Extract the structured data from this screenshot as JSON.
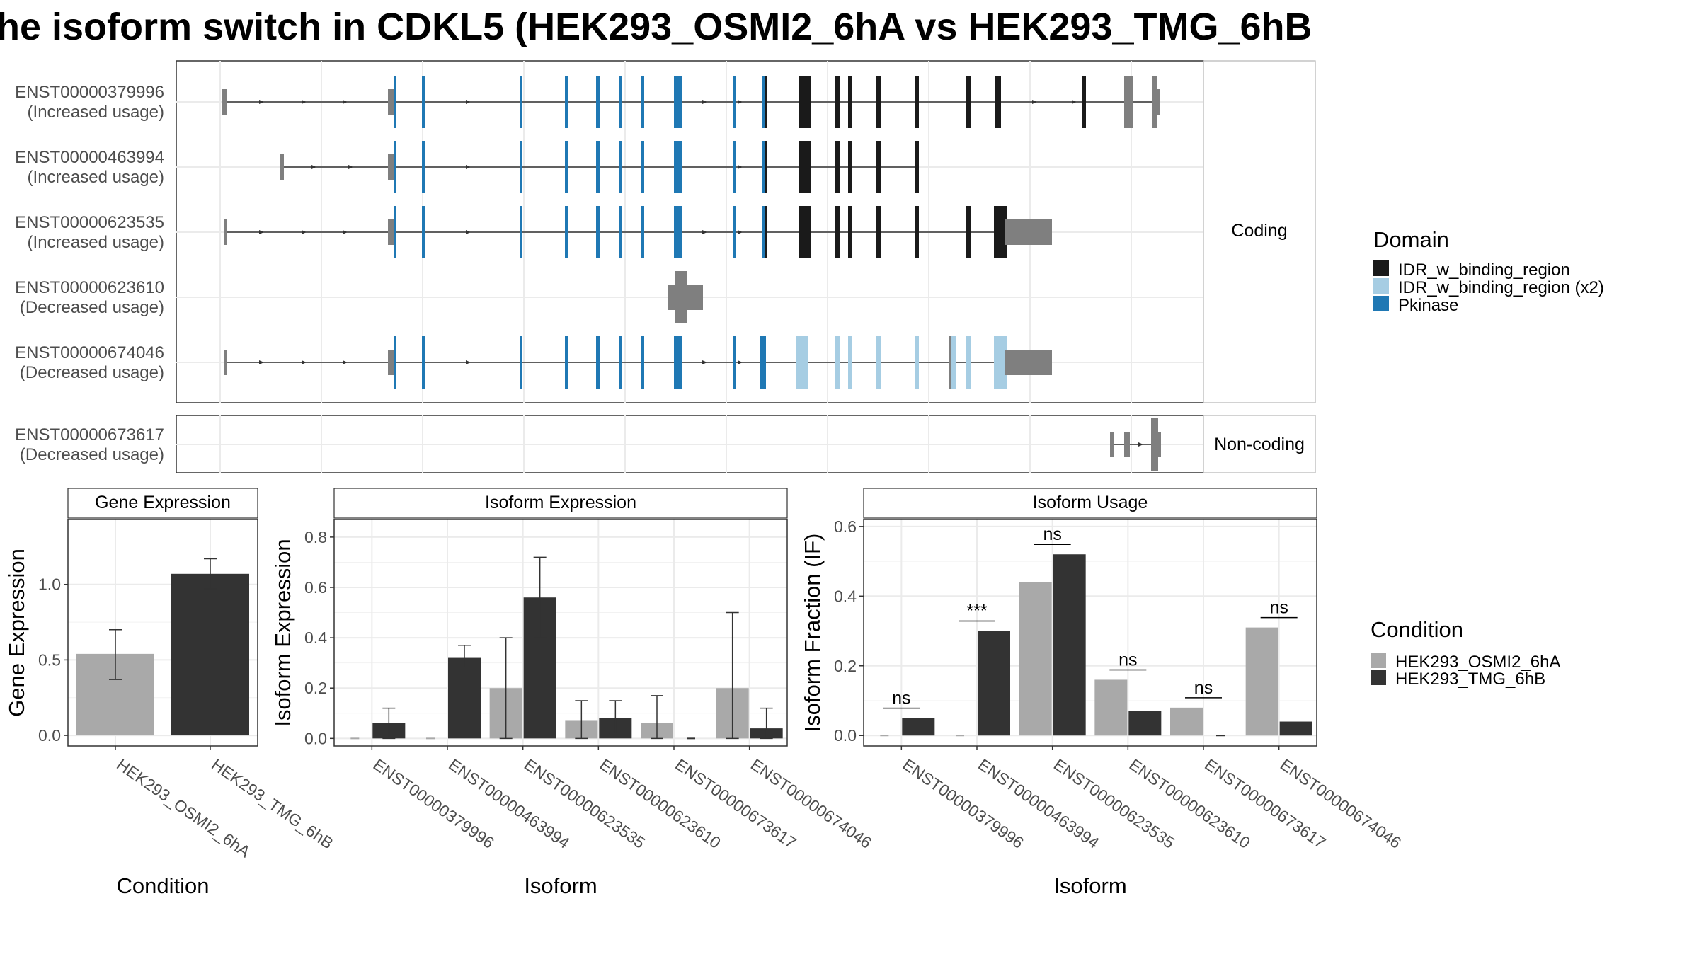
{
  "title": "he isoform switch in CDKL5 (HEK293_OSMI2_6hA vs HEK293_TMG_6hB",
  "colors": {
    "idr": "#1a1a1a",
    "idr_x2": "#a6cde3",
    "pkinase": "#1f78b4",
    "utr": "#7f7f7f",
    "cond_a": "#a9a9a9",
    "cond_b": "#333333",
    "grid": "#ebebeb",
    "panel_border": "#333333",
    "strip_border": "#b3b3b3"
  },
  "structure": {
    "coding_strip": "Coding",
    "noncoding_strip": "Non-coding",
    "legend_title": "Domain",
    "legend_items": [
      "IDR_w_binding_region",
      "IDR_w_binding_region (x2)",
      "Pkinase"
    ],
    "transcripts": [
      {
        "id": "ENST00000379996",
        "usage": "(Increased usage)",
        "type": "coding"
      },
      {
        "id": "ENST00000463994",
        "usage": "(Increased usage)",
        "type": "coding"
      },
      {
        "id": "ENST00000623535",
        "usage": "(Increased usage)",
        "type": "coding"
      },
      {
        "id": "ENST00000623610",
        "usage": "(Decreased usage)",
        "type": "coding"
      },
      {
        "id": "ENST00000674046",
        "usage": "(Decreased usage)",
        "type": "coding"
      },
      {
        "id": "ENST00000673617",
        "usage": "(Decreased usage)",
        "type": "noncoding"
      }
    ]
  },
  "chart_data": [
    {
      "type": "bar",
      "title": "Gene Expression",
      "xlabel": "Condition",
      "ylabel": "Gene Expression",
      "categories": [
        "HEK293_OSMI2_6hA",
        "HEK293_TMG_6hB"
      ],
      "values": [
        0.54,
        1.07
      ],
      "error_low": [
        0.37,
        0.97
      ],
      "error_high": [
        0.7,
        1.17
      ],
      "ylim": [
        -0.07,
        1.43
      ],
      "yticks": [
        0.0,
        0.5,
        1.0
      ],
      "ytick_labels": [
        "0.0",
        "0.5",
        "1.0"
      ]
    },
    {
      "type": "bar",
      "title": "Isoform Expression",
      "xlabel": "Isoform",
      "ylabel": "Isoform Expression",
      "categories": [
        "ENST00000379996",
        "ENST00000463994",
        "ENST00000623535",
        "ENST00000623610",
        "ENST00000673617",
        "ENST00000674046"
      ],
      "series": [
        {
          "name": "HEK293_OSMI2_6hA",
          "values": [
            0.0,
            0.0,
            0.2,
            0.07,
            0.06,
            0.2
          ],
          "error_low": [
            null,
            null,
            0.0,
            0.0,
            0.0,
            0.0
          ],
          "error_high": [
            null,
            null,
            0.4,
            0.15,
            0.17,
            0.5
          ]
        },
        {
          "name": "HEK293_TMG_6hB",
          "values": [
            0.06,
            0.32,
            0.56,
            0.08,
            0.0,
            0.04
          ],
          "error_low": [
            0.0,
            0.28,
            0.4,
            0.02,
            null,
            0.0
          ],
          "error_high": [
            0.12,
            0.37,
            0.72,
            0.15,
            null,
            0.12
          ]
        }
      ],
      "ylim": [
        -0.03,
        0.87
      ],
      "yticks": [
        0.0,
        0.2,
        0.4,
        0.6,
        0.8
      ],
      "ytick_labels": [
        "0.0",
        "0.2",
        "0.4",
        "0.6",
        "0.8"
      ]
    },
    {
      "type": "bar",
      "title": "Isoform Usage",
      "xlabel": "Isoform",
      "ylabel": "Isoform Fraction (IF)",
      "categories": [
        "ENST00000379996",
        "ENST00000463994",
        "ENST00000623535",
        "ENST00000623610",
        "ENST00000673617",
        "ENST00000674046"
      ],
      "series": [
        {
          "name": "HEK293_OSMI2_6hA",
          "values": [
            0.0,
            0.0,
            0.44,
            0.16,
            0.08,
            0.31
          ]
        },
        {
          "name": "HEK293_TMG_6hB",
          "values": [
            0.05,
            0.3,
            0.52,
            0.07,
            0.0,
            0.04
          ]
        }
      ],
      "significance": [
        "ns",
        "***",
        "ns",
        "ns",
        "ns",
        "ns"
      ],
      "ylim": [
        -0.03,
        0.62
      ],
      "yticks": [
        0.0,
        0.2,
        0.4,
        0.6
      ],
      "ytick_labels": [
        "0.0",
        "0.2",
        "0.4",
        "0.6"
      ]
    }
  ],
  "condition_legend": {
    "title": "Condition",
    "items": [
      "HEK293_OSMI2_6hA",
      "HEK293_TMG_6hB"
    ]
  }
}
